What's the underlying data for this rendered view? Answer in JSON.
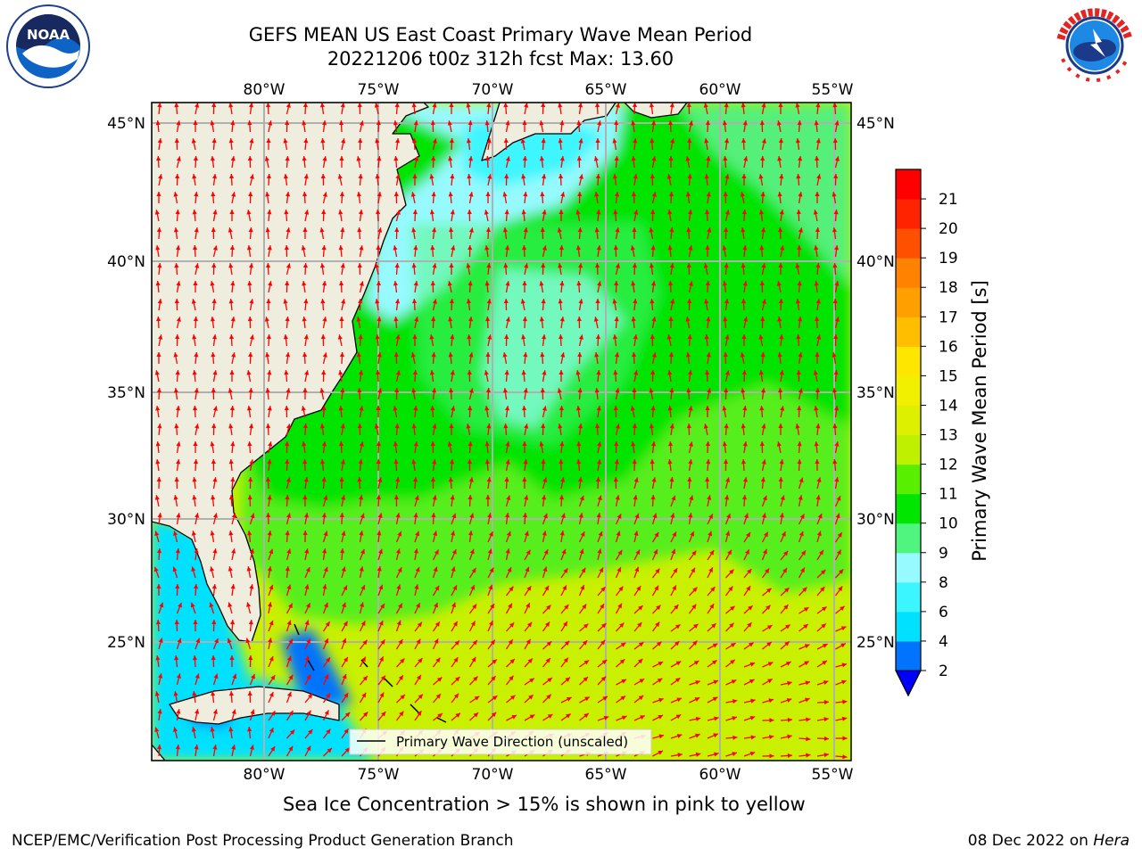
{
  "header": {
    "title_line1": "GEFS MEAN US East Coast Primary Wave Mean Period",
    "title_line2": "20221206 t00z 312h fcst   Max: 13.60"
  },
  "logos": {
    "left": {
      "icon": "noaa-logo",
      "text": "NOAA",
      "ring_text": "NATIONAL OCEANIC AND ATMOSPHERIC ADMINISTRATION · U.S. DEPARTMENT OF COMMERCE"
    },
    "right": {
      "icon": "national-weather-service-logo",
      "ring_text": "NATIONAL WEATHER SERVICE"
    }
  },
  "map": {
    "lon_labels": [
      "80°W",
      "75°W",
      "70°W",
      "65°W",
      "60°W",
      "55°W"
    ],
    "lat_labels": [
      "45°N",
      "40°N",
      "35°N",
      "30°N",
      "25°N"
    ],
    "legend_label": "Primary Wave Direction (unscaled)",
    "vector_color": "#ff0000",
    "land_color": "#efedde"
  },
  "colorbar": {
    "label": "Primary Wave Mean Period [s]",
    "ticks": [
      "2",
      "4",
      "6",
      "8",
      "9",
      "10",
      "11",
      "12",
      "13",
      "14",
      "15",
      "16",
      "17",
      "18",
      "19",
      "20",
      "21"
    ],
    "colors": [
      "#0073ff",
      "#00e1ff",
      "#3cf6ff",
      "#96faff",
      "#4ff57e",
      "#00e600",
      "#58f000",
      "#bef000",
      "#dcf000",
      "#f0f000",
      "#ffe600",
      "#ffbe00",
      "#ffa000",
      "#ff8200",
      "#ff5000",
      "#ff2300",
      "#ff0000"
    ],
    "extend_color": "#0000ff"
  },
  "captions": {
    "sea_ice": "Sea Ice Concentration > 15% is shown in pink to yellow",
    "footer_left": "NCEP/EMC/Verification Post Processing Product Generation Branch",
    "footer_right_prefix": "08 Dec 2022 on ",
    "footer_right_host": "Hera"
  }
}
